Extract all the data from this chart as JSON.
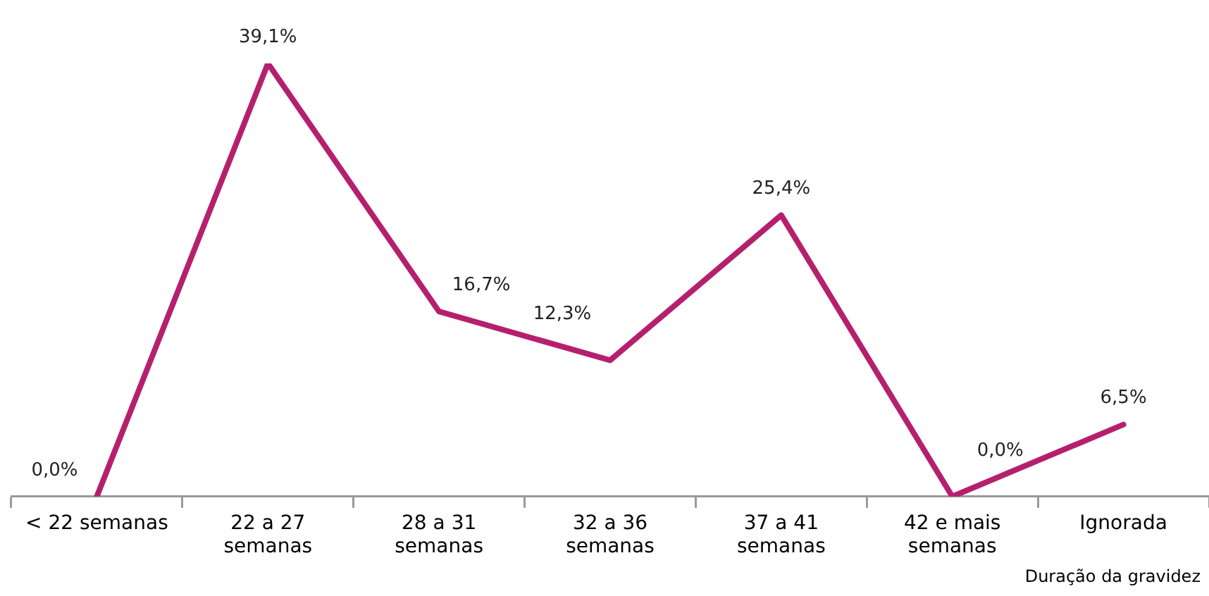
{
  "chart_data": {
    "type": "line",
    "xlabel": "Duração da gravidez",
    "categories": [
      "< 22 semanas",
      "22 a 27 semanas",
      "28 a 31 semanas",
      "32 a 36 semanas",
      "37 a 41 semanas",
      "42 e mais semanas",
      "Ignorada"
    ],
    "series": [
      {
        "color": "#b5206e",
        "values": [
          0.0,
          39.1,
          16.7,
          12.3,
          25.4,
          0.0,
          6.5
        ],
        "value_labels": [
          "0,0%",
          "39,1%",
          "16,7%",
          "12,3%",
          "25,4%",
          "0,0%",
          "6,5%"
        ]
      }
    ],
    "marker": "none",
    "grid": false,
    "legend": false,
    "line_style": "solid"
  }
}
